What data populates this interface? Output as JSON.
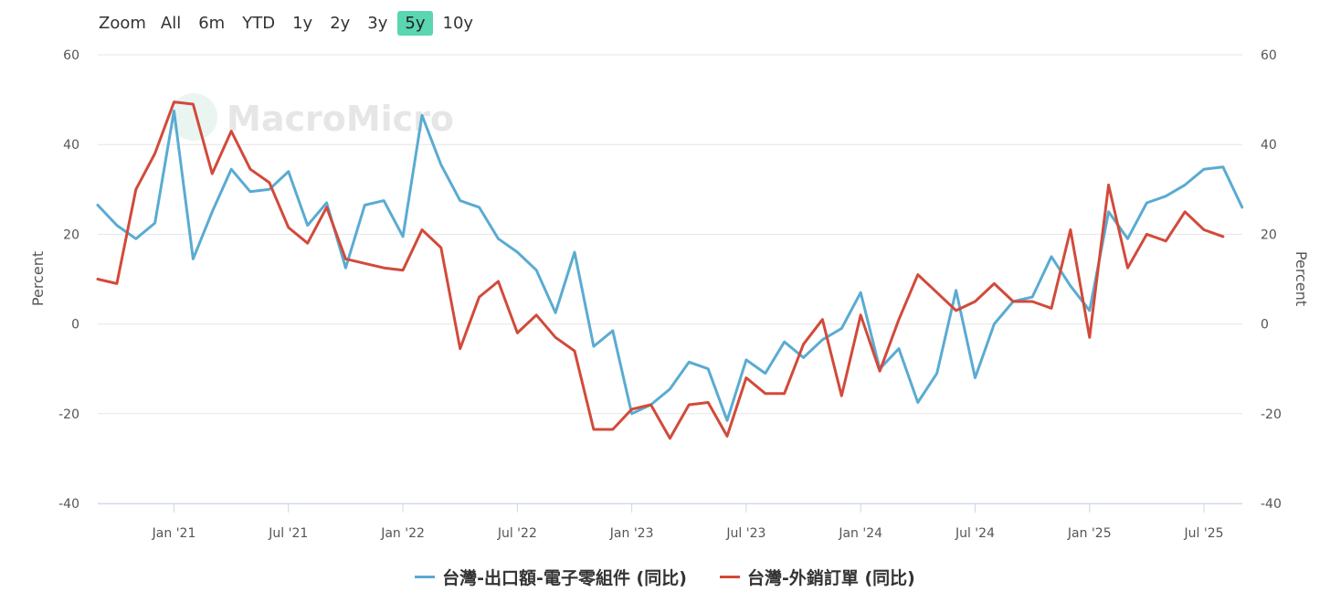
{
  "zoom": {
    "label": "Zoom",
    "buttons": [
      "All",
      "6m",
      "YTD",
      "1y",
      "2y",
      "3y",
      "5y",
      "10y"
    ],
    "active": "5y"
  },
  "watermark": "MacroMicro",
  "colors": {
    "series1": "#5aabd2",
    "series2": "#d24a3a",
    "grid": "#e6e6e6",
    "active_zoom": "#5ad6b0"
  },
  "chart_data": {
    "type": "line",
    "x_start": "2020-09",
    "xticks": [
      "Jan '21",
      "Jul '21",
      "Jan '22",
      "Jul '22",
      "Jan '23",
      "Jul '23",
      "Jan '24",
      "Jul '24",
      "Jan '25",
      "Jul '25"
    ],
    "ylabel_left": "Percent",
    "ylabel_right": "Percent",
    "ylim": [
      -40,
      60
    ],
    "yticks": [
      60,
      40,
      20,
      0,
      -20,
      -40
    ],
    "grid": true,
    "legend_position": "bottom-center",
    "series": [
      {
        "name": "台灣-出口額-電子零組件 (同比)",
        "color": "#5aabd2",
        "values": [
          26.5,
          22,
          19,
          22.5,
          47.5,
          14.5,
          25,
          34.5,
          29.5,
          30,
          34,
          22,
          27,
          12.5,
          26.5,
          27.5,
          19.5,
          46.5,
          35.5,
          27.5,
          26,
          19,
          16,
          12,
          2.5,
          16,
          -5,
          -1.5,
          -20,
          -18,
          -14.5,
          -8.5,
          -10,
          -21.5,
          -8,
          -11,
          -4,
          -7.5,
          -3.5,
          -1,
          7,
          -10,
          -5.5,
          -17.5,
          -11,
          7.5,
          -12,
          0,
          5,
          6,
          15,
          8.5,
          3,
          25,
          19,
          27,
          28.5,
          31,
          34.5,
          35,
          26
        ]
      },
      {
        "name": "台灣-外銷訂單 (同比)",
        "color": "#d24a3a",
        "values": [
          10,
          9,
          30,
          38,
          49.5,
          49,
          33.5,
          43,
          34.5,
          31.5,
          21.5,
          18,
          26,
          14.5,
          13.5,
          12.5,
          12,
          21,
          17,
          -5.5,
          6,
          9.5,
          -2,
          2,
          -3,
          -6,
          -23.5,
          -23.5,
          -19,
          -18,
          -25.5,
          -18,
          -17.5,
          -25,
          -12,
          -15.5,
          -15.5,
          -4.5,
          1,
          -16,
          2,
          -10.5,
          1,
          11,
          7,
          3,
          5,
          9,
          5,
          5,
          3.5,
          21,
          -3,
          31,
          12.5,
          20,
          18.5,
          25,
          21,
          19.5
        ]
      }
    ]
  }
}
